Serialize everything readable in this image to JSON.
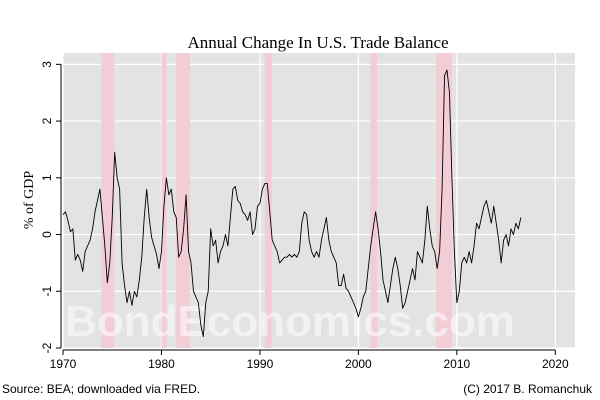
{
  "chart_data": {
    "type": "line",
    "title": "Annual Change In U.S. Trade Balance",
    "xlabel": "",
    "ylabel": "% of GDP",
    "xlim": [
      1970,
      2022
    ],
    "ylim": [
      -2,
      3.2
    ],
    "x_ticks": [
      1970,
      1980,
      1990,
      2000,
      2010,
      2020
    ],
    "y_ticks": [
      -2,
      -1,
      0,
      1,
      2,
      3
    ],
    "grid": true,
    "legend": "none",
    "recessions": [
      [
        1973.9,
        1975.2
      ],
      [
        1980.0,
        1980.5
      ],
      [
        1981.5,
        1982.9
      ],
      [
        1990.5,
        1991.2
      ],
      [
        2001.2,
        2001.9
      ],
      [
        2007.9,
        2009.5
      ]
    ],
    "series": [
      {
        "name": "Annual change in trade balance",
        "x": [
          1970.0,
          1970.25,
          1970.5,
          1970.75,
          1971.0,
          1971.25,
          1971.5,
          1971.75,
          1972.0,
          1972.25,
          1972.5,
          1972.75,
          1973.0,
          1973.25,
          1973.5,
          1973.75,
          1974.0,
          1974.25,
          1974.5,
          1974.75,
          1975.0,
          1975.25,
          1975.5,
          1975.75,
          1976.0,
          1976.25,
          1976.5,
          1976.75,
          1977.0,
          1977.25,
          1977.5,
          1977.75,
          1978.0,
          1978.25,
          1978.5,
          1978.75,
          1979.0,
          1979.25,
          1979.5,
          1979.75,
          1980.0,
          1980.25,
          1980.5,
          1980.75,
          1981.0,
          1981.25,
          1981.5,
          1981.75,
          1982.0,
          1982.25,
          1982.5,
          1982.75,
          1983.0,
          1983.25,
          1983.5,
          1983.75,
          1984.0,
          1984.25,
          1984.5,
          1984.75,
          1985.0,
          1985.25,
          1985.5,
          1985.75,
          1986.0,
          1986.25,
          1986.5,
          1986.75,
          1987.0,
          1987.25,
          1987.5,
          1987.75,
          1988.0,
          1988.25,
          1988.5,
          1988.75,
          1989.0,
          1989.25,
          1989.5,
          1989.75,
          1990.0,
          1990.25,
          1990.5,
          1990.75,
          1991.0,
          1991.25,
          1991.5,
          1991.75,
          1992.0,
          1992.25,
          1992.5,
          1992.75,
          1993.0,
          1993.25,
          1993.5,
          1993.75,
          1994.0,
          1994.25,
          1994.5,
          1994.75,
          1995.0,
          1995.25,
          1995.5,
          1995.75,
          1996.0,
          1996.25,
          1996.5,
          1996.75,
          1997.0,
          1997.25,
          1997.5,
          1997.75,
          1998.0,
          1998.25,
          1998.5,
          1998.75,
          1999.0,
          1999.25,
          1999.5,
          1999.75,
          2000.0,
          2000.25,
          2000.5,
          2000.75,
          2001.0,
          2001.25,
          2001.5,
          2001.75,
          2002.0,
          2002.25,
          2002.5,
          2002.75,
          2003.0,
          2003.25,
          2003.5,
          2003.75,
          2004.0,
          2004.25,
          2004.5,
          2004.75,
          2005.0,
          2005.25,
          2005.5,
          2005.75,
          2006.0,
          2006.25,
          2006.5,
          2006.75,
          2007.0,
          2007.25,
          2007.5,
          2007.75,
          2008.0,
          2008.25,
          2008.5,
          2008.75,
          2009.0,
          2009.25,
          2009.5,
          2009.75,
          2010.0,
          2010.25,
          2010.5,
          2010.75,
          2011.0,
          2011.25,
          2011.5,
          2011.75,
          2012.0,
          2012.25,
          2012.5,
          2012.75,
          2013.0,
          2013.25,
          2013.5,
          2013.75,
          2014.0,
          2014.25,
          2014.5,
          2014.75,
          2015.0,
          2015.25,
          2015.5,
          2015.75,
          2016.0,
          2016.25,
          2016.5
        ],
        "values": [
          0.35,
          0.4,
          0.25,
          0.05,
          0.1,
          -0.45,
          -0.35,
          -0.45,
          -0.65,
          -0.3,
          -0.2,
          -0.1,
          0.1,
          0.4,
          0.6,
          0.8,
          0.3,
          -0.2,
          -0.85,
          -0.5,
          0.3,
          1.45,
          1.0,
          0.8,
          -0.5,
          -0.9,
          -1.2,
          -1.0,
          -1.25,
          -1.0,
          -1.1,
          -0.8,
          -0.4,
          0.3,
          0.8,
          0.3,
          -0.05,
          -0.2,
          -0.35,
          -0.6,
          -0.3,
          0.5,
          1.0,
          0.7,
          0.8,
          0.4,
          0.3,
          -0.4,
          -0.3,
          0.1,
          0.7,
          -0.3,
          -0.5,
          -1.0,
          -1.1,
          -1.2,
          -1.6,
          -1.8,
          -1.2,
          -1.0,
          0.1,
          -0.2,
          -0.1,
          -0.5,
          -0.3,
          -0.2,
          0.0,
          -0.2,
          0.3,
          0.8,
          0.85,
          0.6,
          0.55,
          0.4,
          0.35,
          0.25,
          0.4,
          0.0,
          0.1,
          0.5,
          0.55,
          0.8,
          0.9,
          0.9,
          0.4,
          -0.1,
          -0.2,
          -0.3,
          -0.5,
          -0.45,
          -0.4,
          -0.4,
          -0.35,
          -0.4,
          -0.35,
          -0.4,
          -0.3,
          0.2,
          0.4,
          0.35,
          -0.1,
          -0.3,
          -0.4,
          -0.3,
          -0.4,
          -0.1,
          0.1,
          0.3,
          -0.1,
          -0.3,
          -0.4,
          -0.5,
          -0.9,
          -0.9,
          -0.7,
          -0.95,
          -1.0,
          -1.1,
          -1.2,
          -1.3,
          -1.45,
          -1.3,
          -1.1,
          -1.0,
          -0.6,
          -0.2,
          0.1,
          0.4,
          0.1,
          -0.3,
          -0.8,
          -1.0,
          -1.2,
          -0.9,
          -0.6,
          -0.4,
          -0.6,
          -0.9,
          -1.3,
          -1.2,
          -1.0,
          -0.8,
          -0.6,
          -0.8,
          -0.3,
          -0.4,
          -0.5,
          -0.1,
          0.5,
          0.1,
          -0.2,
          -0.3,
          -0.6,
          -0.3,
          0.8,
          2.8,
          2.9,
          2.5,
          1.0,
          -0.3,
          -1.2,
          -1.0,
          -0.5,
          -0.4,
          -0.5,
          -0.3,
          -0.5,
          -0.2,
          0.2,
          0.1,
          0.3,
          0.5,
          0.6,
          0.4,
          0.2,
          0.5,
          0.2,
          -0.1,
          -0.5,
          -0.1,
          0.0,
          -0.2,
          0.1,
          0.0,
          0.2,
          0.1,
          0.3
        ]
      }
    ]
  },
  "footer": {
    "source": "Source: BEA; downloaded via FRED.",
    "credit": "(C) 2017 B. Romanchuk"
  },
  "watermark": "BondEconomics.com",
  "colors": {
    "panel": "#e3e3e3",
    "grid": "#ffffff",
    "recession": "#f3cdd6",
    "line": "#000000"
  }
}
